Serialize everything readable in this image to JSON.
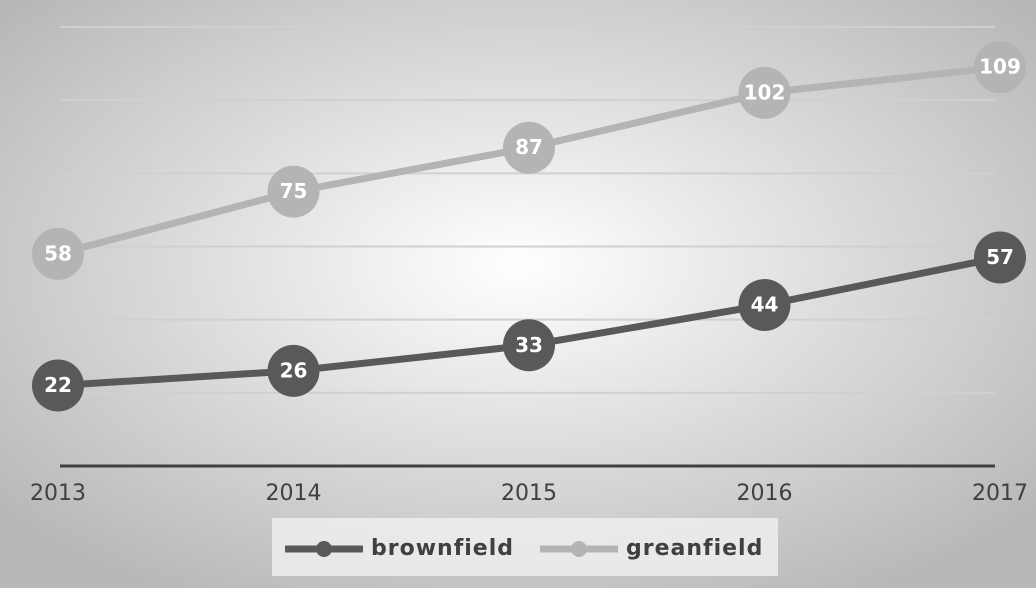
{
  "chart_data": {
    "type": "line",
    "categories": [
      "2013",
      "2014",
      "2015",
      "2016",
      "2017"
    ],
    "series": [
      {
        "name": "brownfield",
        "color": "#595959",
        "values": [
          22,
          26,
          33,
          44,
          57
        ]
      },
      {
        "name": "greanfield",
        "color": "#b4b4b4",
        "values": [
          58,
          75,
          87,
          102,
          109
        ]
      }
    ],
    "ylim": [
      0,
      120
    ],
    "yticks": [
      0,
      20,
      40,
      60,
      80,
      100,
      120
    ],
    "grid": true,
    "legend": "bottom"
  }
}
